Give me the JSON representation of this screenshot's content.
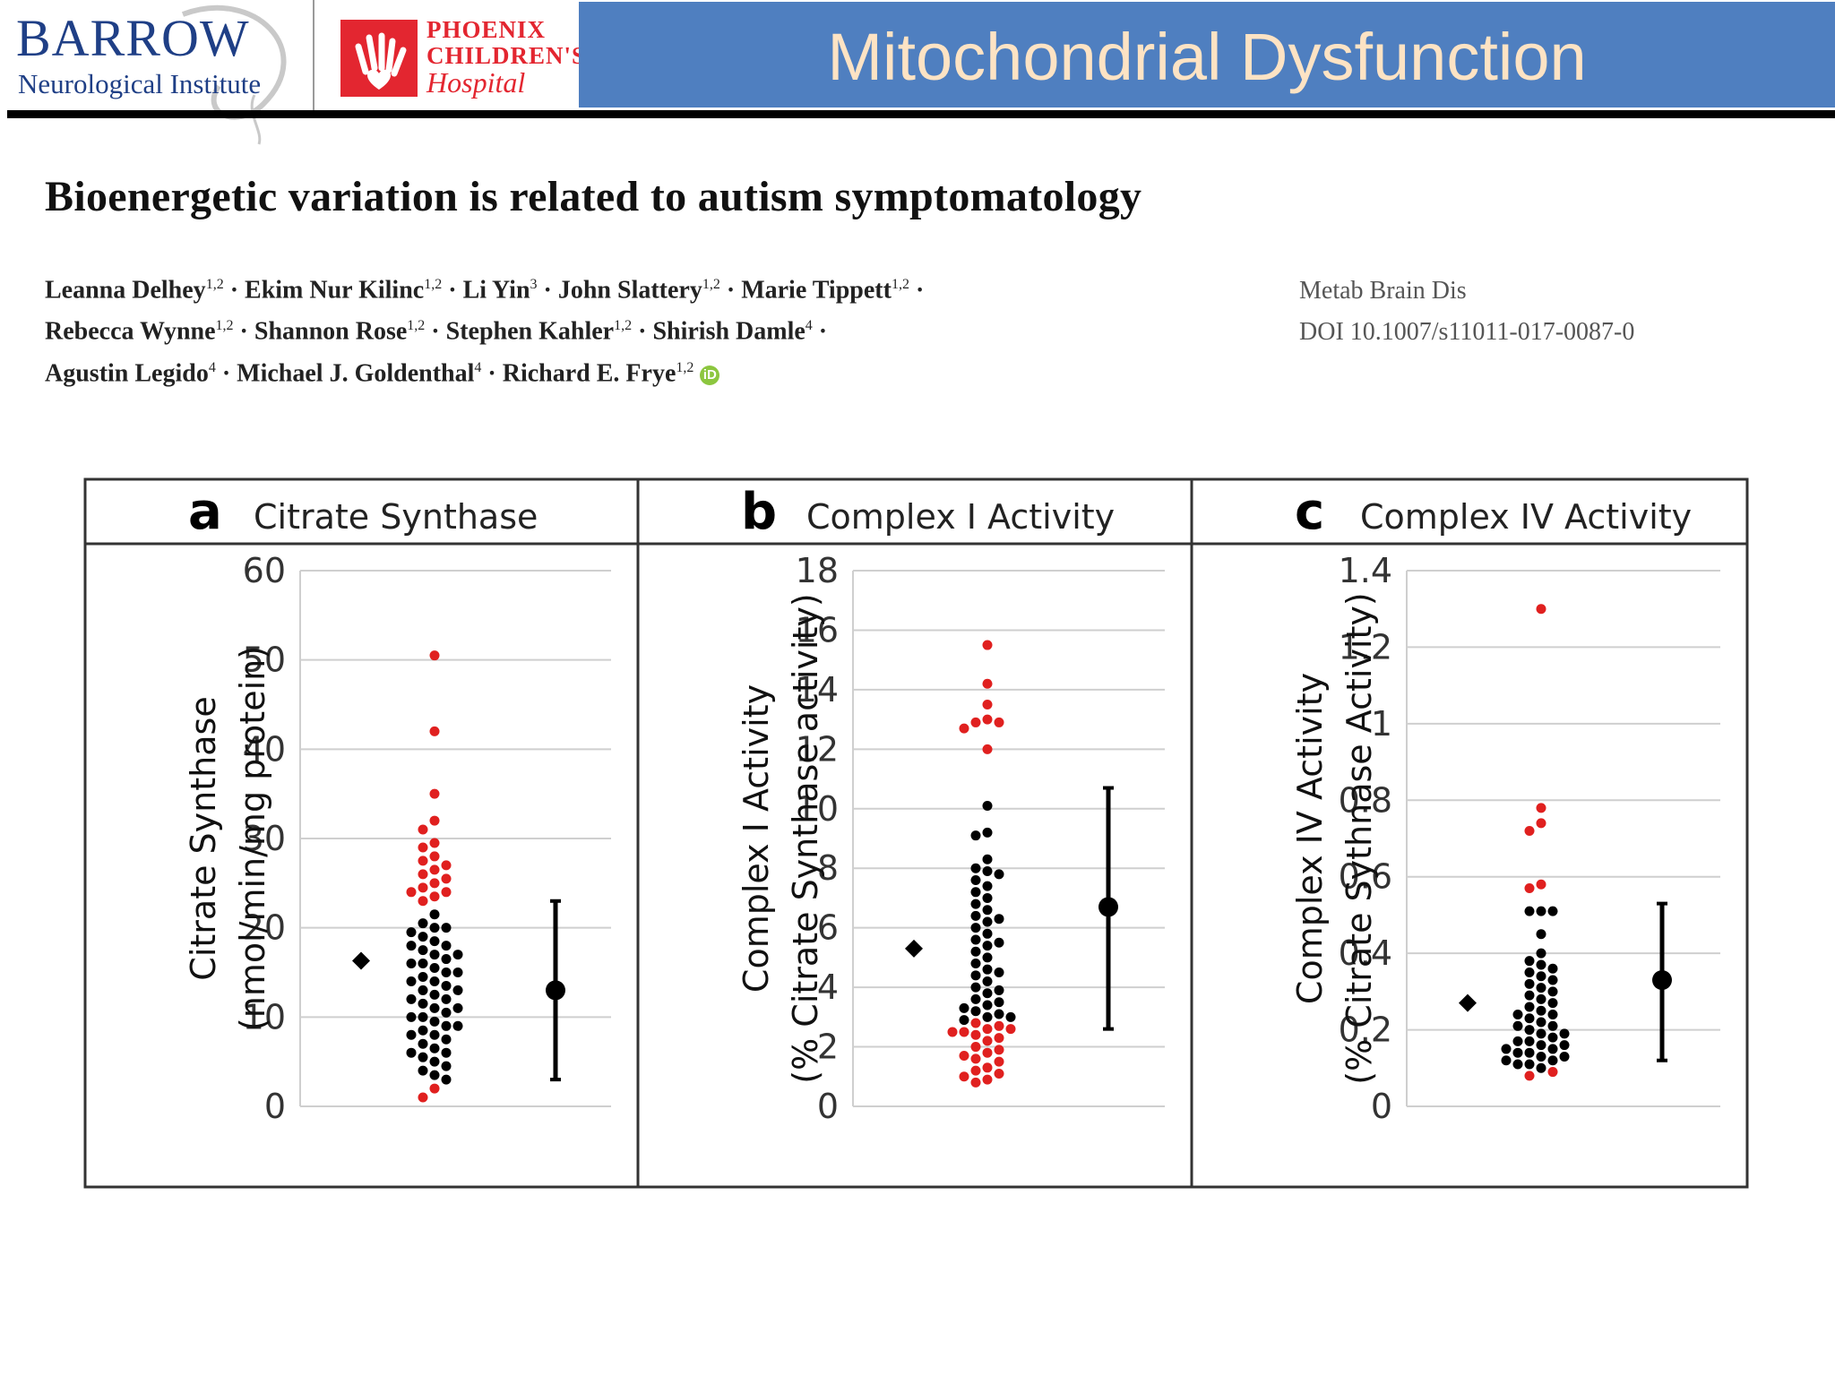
{
  "header": {
    "barrow_name": "BARROW",
    "barrow_sub": "Neurological Institute",
    "phoenix_l1": "PHOENIX",
    "phoenix_l2": "CHILDREN'S",
    "phoenix_l3": "Hospital",
    "slide_title": "Mitochondrial Dysfunction"
  },
  "paper": {
    "title": "Bioenergetic variation is related to autism symptomatology",
    "authors_line1": [
      {
        "name": "Leanna Delhey",
        "sup": "1,2"
      },
      {
        "name": "Ekim Nur Kilinc",
        "sup": "1,2"
      },
      {
        "name": "Li Yin",
        "sup": "3"
      },
      {
        "name": "John Slattery",
        "sup": "1,2"
      },
      {
        "name": "Marie Tippett",
        "sup": "1,2"
      }
    ],
    "authors_line2": [
      {
        "name": "Rebecca Wynne",
        "sup": "1,2"
      },
      {
        "name": "Shannon Rose",
        "sup": "1,2"
      },
      {
        "name": "Stephen Kahler",
        "sup": "1,2"
      },
      {
        "name": "Shirish Damle",
        "sup": "4"
      }
    ],
    "authors_line3": [
      {
        "name": "Agustin Legido",
        "sup": "4"
      },
      {
        "name": "Michael J. Goldenthal",
        "sup": "4"
      },
      {
        "name": "Richard E. Frye",
        "sup": "1,2"
      }
    ],
    "journal": "Metab Brain Dis",
    "doi": "DOI 10.1007/s11011-017-0087-0"
  },
  "colors": {
    "red_points": "#e0201f",
    "black_points": "#000000",
    "title_bar": "#4f7fc0",
    "title_text": "#fde3c4"
  },
  "chart_data": [
    {
      "type": "scatter",
      "panel_letter": "a",
      "title": "Citrate Synthase",
      "ylabel_line1": "Citrate Synthase",
      "ylabel_line2": "(nmol/min/mg protein)",
      "ylim": [
        0,
        60
      ],
      "yticks": [
        0,
        10,
        20,
        30,
        40,
        50,
        60
      ],
      "grid": true,
      "reference_marker": {
        "shape": "diamond",
        "value": 16.3
      },
      "mean_sd": {
        "mean": 13,
        "low": 3,
        "high": 23
      },
      "red_values": [
        50.5,
        42,
        35,
        32,
        31,
        29.5,
        29,
        28,
        27.5,
        27,
        26.5,
        26,
        25.5,
        25,
        24.5,
        24,
        24,
        23.5,
        23,
        2,
        1
      ],
      "black_values": [
        21.5,
        20.5,
        20,
        20,
        19.5,
        19,
        18.5,
        18,
        18,
        17.5,
        17,
        17,
        16.5,
        16,
        16,
        15.5,
        15,
        15,
        14.5,
        14,
        14,
        13.5,
        13,
        13,
        12.5,
        12,
        12,
        11.5,
        11,
        11,
        10.5,
        10,
        10,
        9.5,
        9,
        9,
        8.5,
        8,
        8,
        7.5,
        7,
        6.5,
        6,
        6,
        5.5,
        5,
        4.5,
        4,
        3.5,
        3
      ]
    },
    {
      "type": "scatter",
      "panel_letter": "b",
      "title": "Complex I Activity",
      "ylabel_line1": "Complex I Activity",
      "ylabel_line2": "(% Citrate Synthase activity)",
      "ylim": [
        0,
        18
      ],
      "yticks": [
        0,
        2,
        4,
        6,
        8,
        10,
        12,
        14,
        16,
        18
      ],
      "grid": true,
      "reference_marker": {
        "shape": "diamond",
        "value": 5.3
      },
      "mean_sd": {
        "mean": 6.7,
        "low": 2.6,
        "high": 10.7
      },
      "red_values": [
        15.5,
        14.2,
        13.5,
        13,
        12.9,
        12.9,
        12.7,
        12,
        2.8,
        2.7,
        2.6,
        2.6,
        2.5,
        2.5,
        2.4,
        2.3,
        2.2,
        2.0,
        1.9,
        1.8,
        1.7,
        1.6,
        1.5,
        1.3,
        1.2,
        1.1,
        1.0,
        0.9,
        0.8
      ],
      "black_values": [
        10.1,
        9.2,
        9.1,
        8.3,
        8.0,
        7.9,
        7.8,
        7.6,
        7.4,
        7.2,
        7.0,
        6.8,
        6.6,
        6.4,
        6.3,
        6.2,
        6.0,
        5.8,
        5.6,
        5.5,
        5.4,
        5.2,
        5.0,
        4.8,
        4.6,
        4.5,
        4.4,
        4.2,
        4.0,
        3.9,
        3.8,
        3.6,
        3.5,
        3.4,
        3.3,
        3.2,
        3.1,
        3.0,
        3.0,
        2.9
      ]
    },
    {
      "type": "scatter",
      "panel_letter": "c",
      "title": "Complex IV Activity",
      "ylabel_line1": "Complex IV Activity",
      "ylabel_line2": "(% Citrate Sythnase Activity)",
      "ylim": [
        0,
        1.4
      ],
      "yticks": [
        0,
        0.2,
        0.4,
        0.6,
        0.8,
        1,
        1.2,
        1.4
      ],
      "ytick_labels": [
        "0",
        "0.2",
        "0.4",
        "0.6",
        "0.8",
        "1",
        "1.2",
        "1.4"
      ],
      "grid": true,
      "reference_marker": {
        "shape": "diamond",
        "value": 0.27
      },
      "mean_sd": {
        "mean": 0.33,
        "low": 0.12,
        "high": 0.53
      },
      "red_values": [
        1.3,
        0.78,
        0.74,
        0.72,
        0.58,
        0.57,
        0.09,
        0.08
      ],
      "black_values": [
        0.51,
        0.51,
        0.51,
        0.45,
        0.4,
        0.38,
        0.37,
        0.36,
        0.35,
        0.34,
        0.33,
        0.32,
        0.31,
        0.3,
        0.29,
        0.28,
        0.27,
        0.26,
        0.25,
        0.24,
        0.24,
        0.23,
        0.22,
        0.21,
        0.21,
        0.2,
        0.19,
        0.19,
        0.18,
        0.17,
        0.17,
        0.16,
        0.16,
        0.15,
        0.15,
        0.14,
        0.14,
        0.13,
        0.13,
        0.12,
        0.12,
        0.11,
        0.11,
        0.1
      ]
    }
  ]
}
